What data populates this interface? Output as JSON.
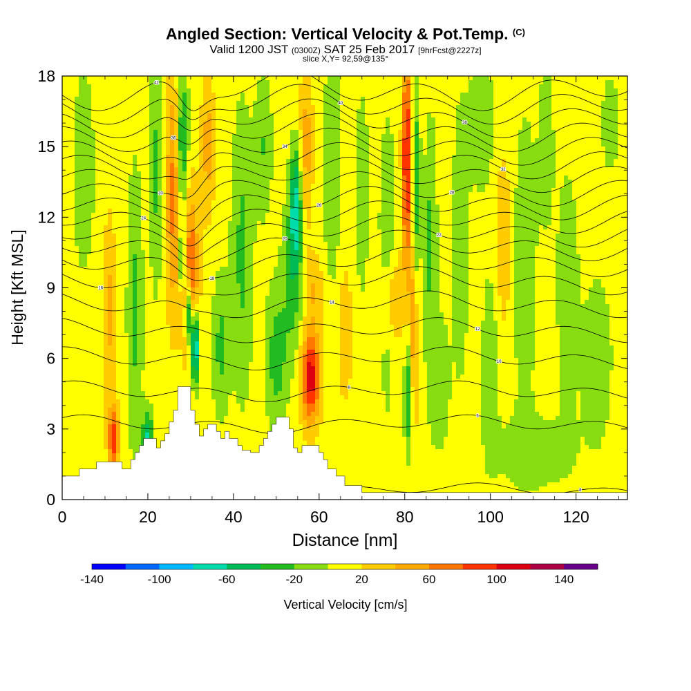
{
  "header": {
    "title": "Angled Section: Vertical Velocity & Pot.Temp.",
    "title_suffix": "(C)",
    "line2_a": "Valid 1200 JST",
    "line2_b": "(0300Z)",
    "line2_c": "SAT 25 Feb 2017",
    "line2_d": "[9hrFcst@2227z]",
    "line3": "slice X,Y= 92,59@135°"
  },
  "chart_data": {
    "type": "heatmap",
    "title": "Angled Section: Vertical Velocity & Pot.Temp.",
    "xlabel": "Distance [nm]",
    "ylabel": "Height [Kft MSL]",
    "xlim": [
      0,
      132
    ],
    "ylim": [
      0,
      18
    ],
    "x_ticks": [
      "0",
      "20",
      "40",
      "60",
      "80",
      "100",
      "120"
    ],
    "y_ticks": [
      "0",
      "3",
      "6",
      "9",
      "12",
      "15",
      "18"
    ],
    "colorbar": {
      "label": "Vertical Velocity [cm/s]",
      "tick_labels": [
        "-140",
        "-100",
        "-60",
        "-20",
        "20",
        "60",
        "100",
        "140"
      ],
      "tick_values": [
        -140,
        -100,
        -60,
        -20,
        20,
        60,
        100,
        140
      ],
      "range": [
        -140,
        160
      ],
      "step": 20,
      "colors": [
        "#0000ff",
        "#0066ff",
        "#00bbff",
        "#00ddaa",
        "#00bb55",
        "#22bb22",
        "#88dd11",
        "#ffff00",
        "#ffcc00",
        "#ffaa00",
        "#ff7700",
        "#ff3300",
        "#dd0011",
        "#aa0044",
        "#660088"
      ]
    },
    "background_value": 10,
    "features": [
      {
        "x": 12,
        "z": 2.6,
        "w": 1.2,
        "h": 1.3,
        "v": 85
      },
      {
        "x": 11,
        "z": 8.0,
        "w": 1.5,
        "h": 4.0,
        "v": 35
      },
      {
        "x": 17,
        "z": 8.0,
        "w": 1.8,
        "h": 6.0,
        "v": -35
      },
      {
        "x": 20,
        "z": 2.5,
        "w": 1.2,
        "h": 1.2,
        "v": -75
      },
      {
        "x": 22,
        "z": 14.0,
        "w": 1.5,
        "h": 5.0,
        "v": -35
      },
      {
        "x": 26,
        "z": 13.0,
        "w": 1.8,
        "h": 5.0,
        "v": 60
      },
      {
        "x": 28,
        "z": 15.0,
        "w": 1.4,
        "h": 3.5,
        "v": -60
      },
      {
        "x": 30,
        "z": 9.5,
        "w": 1.8,
        "h": 3.5,
        "v": 75
      },
      {
        "x": 31,
        "z": 6.5,
        "w": 0.9,
        "h": 1.6,
        "v": -120
      },
      {
        "x": 29.5,
        "z": 8.0,
        "w": 0.8,
        "h": 1.5,
        "v": -95
      },
      {
        "x": 28,
        "z": 10.2,
        "w": 0.7,
        "h": 1.2,
        "v": -75
      },
      {
        "x": 34,
        "z": 15.0,
        "w": 1.5,
        "h": 3.0,
        "v": 40
      },
      {
        "x": 37,
        "z": 6.5,
        "w": 2.0,
        "h": 3.0,
        "v": -35
      },
      {
        "x": 42,
        "z": 10.5,
        "w": 2.5,
        "h": 6.0,
        "v": -35
      },
      {
        "x": 47,
        "z": 15.0,
        "w": 2.0,
        "h": 3.0,
        "v": -30
      },
      {
        "x": 50,
        "z": 6.0,
        "w": 2.5,
        "h": 3.0,
        "v": -40
      },
      {
        "x": 54.5,
        "z": 12.5,
        "w": 1.3,
        "h": 2.5,
        "v": -70
      },
      {
        "x": 54,
        "z": 9.5,
        "w": 2.5,
        "h": 3.5,
        "v": -40
      },
      {
        "x": 57,
        "z": 15.0,
        "w": 1.5,
        "h": 3.5,
        "v": 40
      },
      {
        "x": 58,
        "z": 5.2,
        "w": 2.2,
        "h": 1.9,
        "v": 105
      },
      {
        "x": 58.5,
        "z": 9.0,
        "w": 2.5,
        "h": 1.5,
        "v": 30
      },
      {
        "x": 63,
        "z": 14.0,
        "w": 2.0,
        "h": 5.0,
        "v": -30
      },
      {
        "x": 66,
        "z": 7.0,
        "w": 1.8,
        "h": 3.0,
        "v": 25
      },
      {
        "x": 70,
        "z": 13.0,
        "w": 1.5,
        "h": 4.0,
        "v": -30
      },
      {
        "x": 76,
        "z": 10.0,
        "w": 2.0,
        "h": 6.0,
        "v": -30
      },
      {
        "x": 77,
        "z": 8.5,
        "w": 2.5,
        "h": 2.0,
        "v": 40
      },
      {
        "x": 80.5,
        "z": 14.5,
        "w": 1.1,
        "h": 4.5,
        "v": 100
      },
      {
        "x": 82,
        "z": 7.0,
        "w": 1.0,
        "h": 4.0,
        "v": 60
      },
      {
        "x": 82.5,
        "z": 13.0,
        "w": 1.0,
        "h": 5.0,
        "v": -50
      },
      {
        "x": 81,
        "z": 4.5,
        "w": 1.0,
        "h": 2.5,
        "v": -60
      },
      {
        "x": 86,
        "z": 11.0,
        "w": 1.5,
        "h": 5.0,
        "v": -35
      },
      {
        "x": 88,
        "z": 5.0,
        "w": 2.5,
        "h": 3.0,
        "v": -25
      },
      {
        "x": 93,
        "z": 11.0,
        "w": 2.0,
        "h": 6.0,
        "v": -25
      },
      {
        "x": 98,
        "z": 16.0,
        "w": 3.0,
        "h": 3.0,
        "v": -25
      },
      {
        "x": 100,
        "z": 6.0,
        "w": 2.0,
        "h": 4.0,
        "v": -25
      },
      {
        "x": 103,
        "z": 11.0,
        "w": 2.0,
        "h": 4.0,
        "v": 25
      },
      {
        "x": 108,
        "z": 10.0,
        "w": 2.5,
        "h": 6.0,
        "v": -30
      },
      {
        "x": 113,
        "z": 15.0,
        "w": 2.0,
        "h": 4.0,
        "v": -20
      },
      {
        "x": 118,
        "z": 9.0,
        "w": 2.5,
        "h": 5.0,
        "v": -25
      },
      {
        "x": 125,
        "z": 6.0,
        "w": 4.0,
        "h": 4.0,
        "v": -20
      },
      {
        "x": 110,
        "z": 2.0,
        "w": 10.0,
        "h": 1.8,
        "v": -20
      },
      {
        "x": 5,
        "z": 14.0,
        "w": 3.0,
        "h": 5.0,
        "v": -20
      },
      {
        "x": 128,
        "z": 16.0,
        "w": 3.0,
        "h": 3.0,
        "v": -15
      }
    ],
    "terrain_kft": [
      [
        0,
        1.0
      ],
      [
        4,
        1.0
      ],
      [
        4,
        1.3
      ],
      [
        8,
        1.3
      ],
      [
        8,
        1.6
      ],
      [
        14,
        1.6
      ],
      [
        14,
        1.3
      ],
      [
        16,
        1.3
      ],
      [
        16,
        1.7
      ],
      [
        17,
        1.7
      ],
      [
        17,
        2.0
      ],
      [
        18,
        2.0
      ],
      [
        18,
        2.3
      ],
      [
        19,
        2.3
      ],
      [
        19,
        2.6
      ],
      [
        22,
        2.6
      ],
      [
        22,
        2.2
      ],
      [
        23,
        2.2
      ],
      [
        23,
        2.5
      ],
      [
        24,
        2.5
      ],
      [
        24,
        2.8
      ],
      [
        25,
        2.8
      ],
      [
        25,
        3.3
      ],
      [
        26,
        3.3
      ],
      [
        26,
        3.8
      ],
      [
        27,
        3.8
      ],
      [
        27,
        4.8
      ],
      [
        30,
        4.8
      ],
      [
        30,
        3.8
      ],
      [
        31,
        3.8
      ],
      [
        31,
        3.2
      ],
      [
        32,
        3.2
      ],
      [
        32,
        2.7
      ],
      [
        33,
        2.7
      ],
      [
        33,
        3.0
      ],
      [
        34,
        3.0
      ],
      [
        34,
        3.2
      ],
      [
        36,
        3.2
      ],
      [
        36,
        2.9
      ],
      [
        37,
        2.9
      ],
      [
        37,
        2.6
      ],
      [
        38,
        2.6
      ],
      [
        38,
        2.9
      ],
      [
        39,
        2.9
      ],
      [
        39,
        2.6
      ],
      [
        41,
        2.6
      ],
      [
        41,
        2.3
      ],
      [
        42,
        2.3
      ],
      [
        42,
        2.1
      ],
      [
        44,
        2.1
      ],
      [
        44,
        2.0
      ],
      [
        46,
        2.0
      ],
      [
        46,
        2.3
      ],
      [
        47,
        2.3
      ],
      [
        47,
        2.6
      ],
      [
        48,
        2.6
      ],
      [
        48,
        2.9
      ],
      [
        49,
        2.9
      ],
      [
        49,
        3.2
      ],
      [
        50,
        3.2
      ],
      [
        50,
        3.5
      ],
      [
        53,
        3.5
      ],
      [
        53,
        3.0
      ],
      [
        54,
        3.0
      ],
      [
        54,
        2.2
      ],
      [
        55,
        2.2
      ],
      [
        55,
        2.0
      ],
      [
        56,
        2.0
      ],
      [
        56,
        2.3
      ],
      [
        60,
        2.3
      ],
      [
        60,
        2.0
      ],
      [
        61,
        2.0
      ],
      [
        61,
        1.7
      ],
      [
        62,
        1.7
      ],
      [
        62,
        1.3
      ],
      [
        64,
        1.3
      ],
      [
        64,
        1.0
      ],
      [
        66,
        1.0
      ],
      [
        66,
        0.6
      ],
      [
        70,
        0.6
      ],
      [
        70,
        0.3
      ],
      [
        132,
        0.3
      ]
    ],
    "theta_levels": [
      {
        "base": 0.4,
        "label": "8",
        "label_x": 121
      },
      {
        "base": 3.2,
        "label": "6",
        "label_x": 97
      },
      {
        "base": 4.6,
        "label": "8",
        "label_x": 67
      },
      {
        "base": 6.0,
        "label": "10",
        "label_x": 102
      },
      {
        "base": 7.2,
        "label": "12",
        "label_x": 97
      },
      {
        "base": 8.3,
        "label": "14",
        "label_x": 63
      },
      {
        "base": 9.3,
        "label": "16",
        "label_x": 9
      },
      {
        "base": 10.1,
        "label": "18",
        "label_x": 35
      },
      {
        "base": 10.8,
        "label": "20",
        "label_x": 52
      },
      {
        "base": 11.4,
        "label": "22",
        "label_x": 88
      },
      {
        "base": 12.0,
        "label": "24",
        "label_x": 19
      },
      {
        "base": 12.6,
        "label": "26",
        "label_x": 60
      },
      {
        "base": 13.2,
        "label": "28",
        "label_x": 91
      },
      {
        "base": 13.8,
        "label": "30",
        "label_x": 23
      },
      {
        "base": 14.4,
        "label": "32",
        "label_x": 103
      },
      {
        "base": 15.0,
        "label": "34",
        "label_x": 52
      },
      {
        "base": 15.6,
        "label": "36",
        "label_x": 26
      },
      {
        "base": 16.2,
        "label": "38",
        "label_x": 94
      },
      {
        "base": 16.8,
        "label": "40",
        "label_x": 65
      },
      {
        "base": 17.4,
        "label": "42",
        "label_x": 22
      }
    ]
  }
}
